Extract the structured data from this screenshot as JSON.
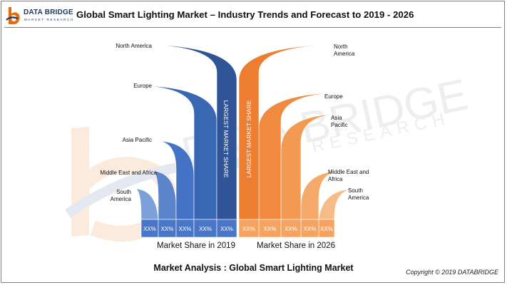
{
  "logo": {
    "name": "DATA BRIDGE",
    "tagline": "MARKET RESEARCH",
    "watermark_name": "DATA BRIDGE",
    "watermark_tagline": "RESEARCH"
  },
  "header": {
    "title": "Global Smart Lighting Market – Industry Trends and Forecast to 2019 - 2026"
  },
  "footer": {
    "title": "Market Analysis : Global Smart Lighting Market",
    "copyright": "Copyright © 2019 DATABRIDGE"
  },
  "colors": {
    "series_2019": "#2f5597",
    "series_2026": "#ed7d31",
    "logo_blue": "#1f3864",
    "logo_orange": "#e46c0a",
    "bar_band_2019": "#4472c4",
    "bar_band_2026": "#f4a460"
  },
  "chart_data": {
    "type": "bar",
    "title": "",
    "categories": [
      "North America",
      "Europe",
      "Asia Pacific",
      "Middle East and Africa",
      "South America"
    ],
    "series": [
      {
        "name": "Market Share in 2019",
        "values_display": [
          "XX%",
          "XX%",
          "XX%",
          "XX%",
          "XX%"
        ],
        "rank": [
          1,
          2,
          3,
          4,
          5
        ],
        "category_labels": [
          "North America",
          "Europe",
          "Asia Pacific",
          "Middle East and Africa",
          "South America"
        ],
        "largest_label": "LARGEST MARKET SHARE"
      },
      {
        "name": "Market Share in 2026",
        "values_display": [
          "XX%",
          "XX%",
          "XX%",
          "XX%",
          "XX%"
        ],
        "rank": [
          1,
          2,
          3,
          4,
          5
        ],
        "category_labels": [
          "North America",
          "Europe",
          "Asia Pacific",
          "Middle East and Africa",
          "South America"
        ],
        "largest_label": "LARGEST MARKET SHARE"
      }
    ],
    "legend": "bottom",
    "grid": false
  }
}
